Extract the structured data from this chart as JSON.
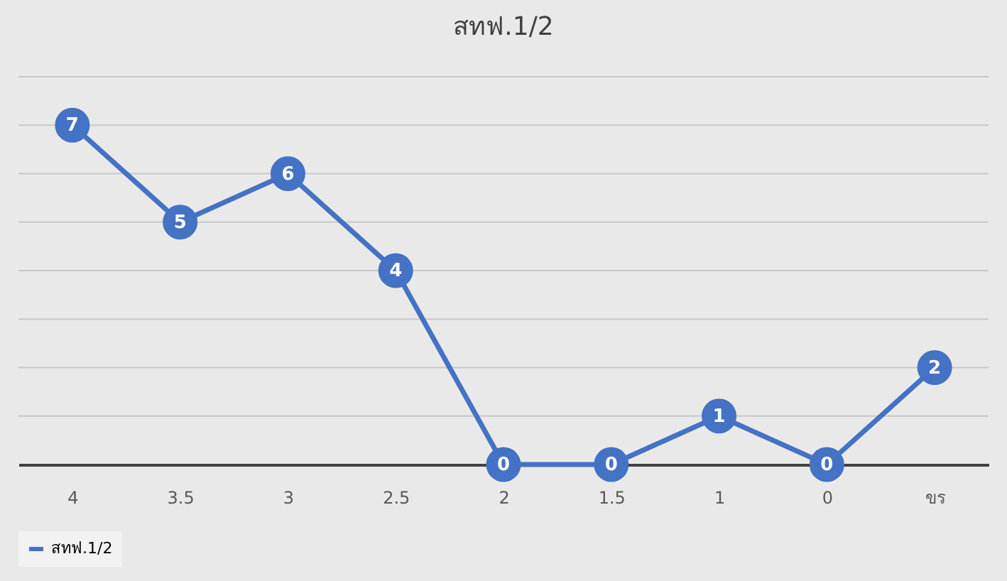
{
  "chart_data": {
    "type": "line",
    "title": "สทฟ.1/2",
    "categories": [
      "4",
      "3.5",
      "3",
      "2.5",
      "2",
      "1.5",
      "1",
      "0",
      "ขร"
    ],
    "series": [
      {
        "name": "สทฟ.1/2",
        "color": "#4472c4",
        "values": [
          7,
          5,
          6,
          4,
          0,
          0,
          1,
          0,
          2
        ]
      }
    ],
    "ylim": [
      0,
      8
    ],
    "yticks": [
      {
        "value": 0,
        "label": null
      },
      {
        "value": 1,
        "label": null
      },
      {
        "value": 2,
        "label": null
      },
      {
        "value": 3,
        "label": null
      },
      {
        "value": 4,
        "label": null
      },
      {
        "value": 5,
        "label": null
      },
      {
        "value": 6,
        "label": null
      },
      {
        "value": 7,
        "label": null
      },
      {
        "value": 8,
        "label": null
      }
    ],
    "tick_labels": "x",
    "grid": "y",
    "legend": "bottom",
    "marker": "circle",
    "line_style": "solid",
    "data_labels": true
  }
}
